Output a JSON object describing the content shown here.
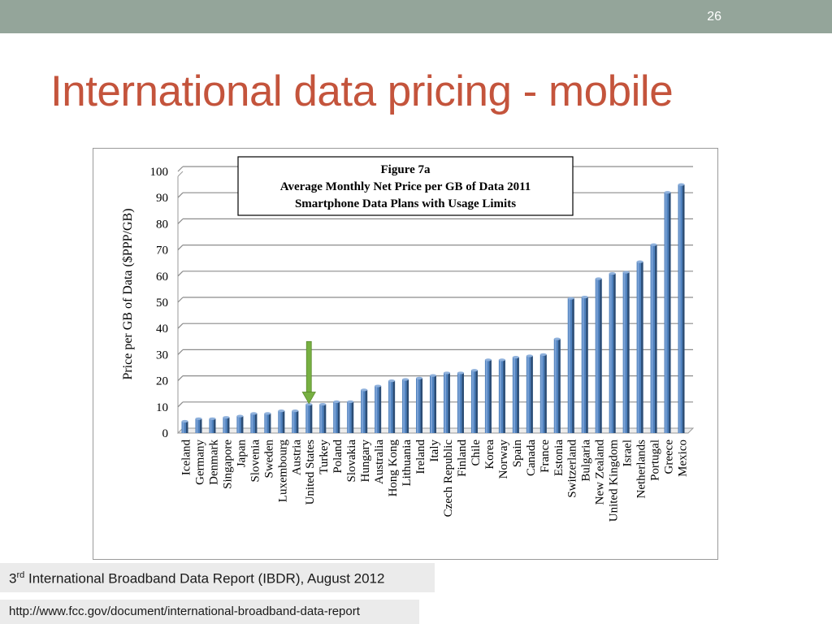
{
  "slide": {
    "number": "26",
    "title": "International data pricing - mobile"
  },
  "source": {
    "prefix": "3",
    "sup": "rd",
    "text": " International Broadband Data Report (IBDR), August 2012"
  },
  "url": "http://www.fcc.gov/document/international-broadband-data-report",
  "colors": {
    "bar": "#4f81bd",
    "arrow": "#77b042",
    "title": "#c4543c",
    "topbar": "#94a59a"
  },
  "chart_data": {
    "type": "bar",
    "title_lines": [
      "Figure 7a",
      "Average Monthly Net Price per GB of Data 2011",
      "Smartphone Data Plans with Usage Limits"
    ],
    "ylabel": "Price per GB of Data ($PPP/GB)",
    "xlabel": "",
    "ylim": [
      0,
      100
    ],
    "yticks": [
      0,
      10,
      20,
      30,
      40,
      50,
      60,
      70,
      80,
      90,
      100
    ],
    "grid": true,
    "categories": [
      "Iceland",
      "Germany",
      "Denmark",
      "Singapore",
      "Japan",
      "Slovenia",
      "Sweden",
      "Luxembourg",
      "Austria",
      "United States",
      "Turkey",
      "Poland",
      "Slovakia",
      "Hungary",
      "Australia",
      "Hong Kong",
      "Lithuania",
      "Ireland",
      "Italy",
      "Czech Republic",
      "Finland",
      "Chile",
      "Korea",
      "Norway",
      "Spain",
      "Canada",
      "France",
      "Estonia",
      "Switzerland",
      "Bulgaria",
      "New Zealand",
      "United Kingdom",
      "Israel",
      "Netherlands",
      "Portugal",
      "Greece",
      "Mexico"
    ],
    "values": [
      4.5,
      5.5,
      5.5,
      6,
      6.5,
      7.5,
      7.5,
      8.5,
      8.5,
      11,
      11,
      12,
      12,
      16.5,
      18,
      20,
      20.5,
      21,
      22,
      23,
      23,
      24,
      28,
      28,
      29,
      29.5,
      30,
      36,
      51.5,
      52,
      59,
      61,
      61.5,
      65.5,
      72,
      92,
      95
    ],
    "highlight": "United States"
  }
}
